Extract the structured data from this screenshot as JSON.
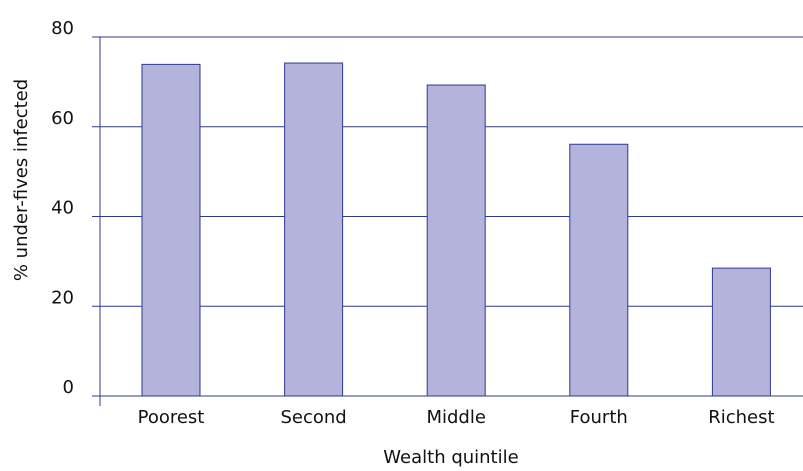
{
  "chart_data": {
    "type": "bar",
    "categories": [
      "Poorest",
      "Second",
      "Middle",
      "Fourth",
      "Richest"
    ],
    "values": [
      73.9,
      74.2,
      69.3,
      56.1,
      28.5
    ],
    "color": "#b3b3dc",
    "ylim": [
      0,
      80
    ],
    "yticks": [
      0,
      20,
      40,
      60,
      80
    ],
    "grid": true,
    "xlabel": "Wealth quintile",
    "ylabel": "% under-fives infected"
  }
}
